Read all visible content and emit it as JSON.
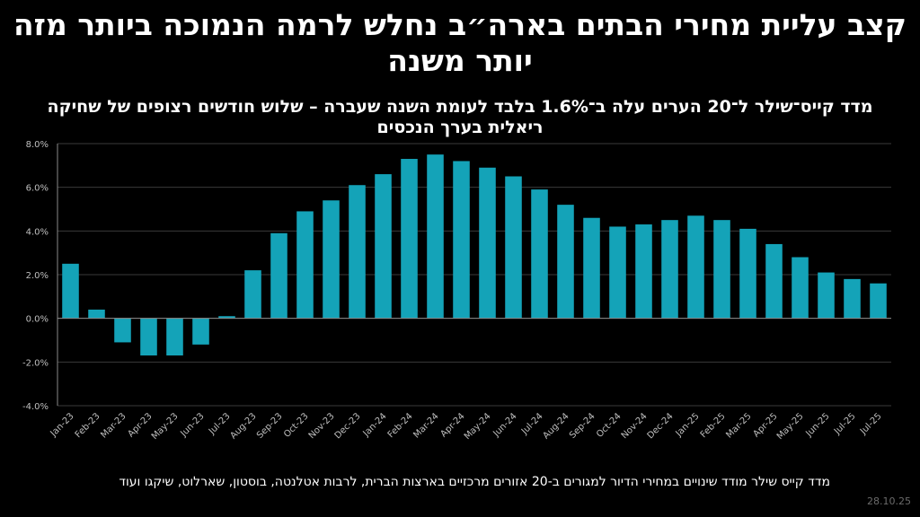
{
  "header": {
    "title": "קצב עליית מחירי הבתים בארה״ב נחלש לרמה הנמוכה ביותר מזה יותר משנה",
    "subtitle": "מדד קייס־שילר ל־20 הערים עלה ב־1.6% בלבד לעומת השנה שעברה – שלוש חודשים רצופים של שחיקה ריאלית בערך הנכסים"
  },
  "footer": {
    "note": "מדד קייס שילר מודד שינויים במחירי הדיור למגורים ב-20 אזורים מרכזיים בארצות הברית, לרבות אטלנטה, בוסטון, שארלוט, שיקגו ועוד",
    "date": "28.10.25"
  },
  "colors": {
    "bar": "#14a3b8",
    "background": "#000000",
    "grid": "#3a3a3a",
    "axis_text": "#bfbfbf"
  },
  "chart_data": {
    "type": "bar",
    "categories": [
      "Jan-23",
      "Feb-23",
      "Mar-23",
      "Apr-23",
      "May-23",
      "Jun-23",
      "Jul-23",
      "Aug-23",
      "Sep-23",
      "Oct-23",
      "Nov-23",
      "Dec-23",
      "Jan-24",
      "Feb-24",
      "Mar-24",
      "Apr-24",
      "May-24",
      "Jun-24",
      "Jul-24",
      "Aug-24",
      "Sep-24",
      "Oct-24",
      "Nov-24",
      "Dec-24",
      "Jan-25",
      "Feb-25",
      "Mar-25",
      "Apr-25",
      "May-25",
      "Jun-25",
      "Jul-25",
      "Jul-25"
    ],
    "values": [
      2.5,
      0.4,
      -1.1,
      -1.7,
      -1.7,
      -1.2,
      0.1,
      2.2,
      3.9,
      4.9,
      5.4,
      6.1,
      6.6,
      7.3,
      7.5,
      7.2,
      6.9,
      6.5,
      5.9,
      5.2,
      4.6,
      4.2,
      4.3,
      4.5,
      4.7,
      4.5,
      4.1,
      3.4,
      2.8,
      2.1,
      1.8,
      1.6
    ],
    "ylim": [
      -4,
      8
    ],
    "yticks": [
      -4,
      -2,
      0,
      2,
      4,
      6,
      8
    ],
    "ytick_labels": [
      "-4.0%",
      "-2.0%",
      "0.0%",
      "2.0%",
      "4.0%",
      "6.0%",
      "8.0%"
    ],
    "grid": true,
    "xlabel": "",
    "ylabel": ""
  }
}
